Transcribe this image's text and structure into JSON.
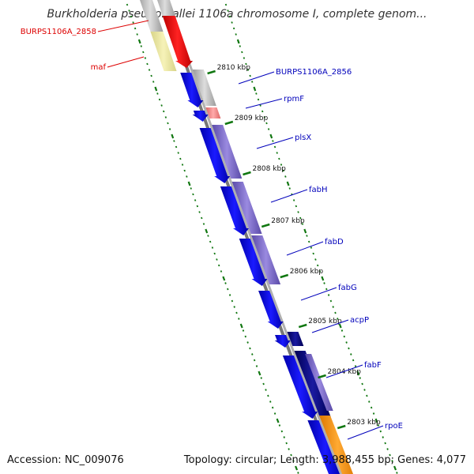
{
  "title": "Burkholderia pseudomallei 1106a chromosome I, complete genom...",
  "footer": {
    "accession": "Accession: NC_009076",
    "stats": "Topology: circular; Length: 3,988,455 bp; Genes: 4,077"
  },
  "kbp_markers": [
    "2810 kbp",
    "2809 kbp",
    "2808 kbp",
    "2807 kbp",
    "2806 kbp",
    "2805 kbp",
    "2804 kbp",
    "2803 kbp"
  ],
  "gene_labels": [
    {
      "name": "BURPS1106A_2858",
      "color": "#dd0000"
    },
    {
      "name": "maf",
      "color": "#dd0000"
    },
    {
      "name": "BURPS1106A_2856",
      "color": "#0000bb"
    },
    {
      "name": "rpmF",
      "color": "#0000bb"
    },
    {
      "name": "plsX",
      "color": "#0000bb"
    },
    {
      "name": "fabH",
      "color": "#0000bb"
    },
    {
      "name": "fabD",
      "color": "#0000bb"
    },
    {
      "name": "fabG",
      "color": "#0000bb"
    },
    {
      "name": "acpP",
      "color": "#0000bb"
    },
    {
      "name": "fabF",
      "color": "#0000bb"
    },
    {
      "name": "rpoE",
      "color": "#0000bb"
    }
  ],
  "colors": {
    "backbone": "#8a8a8a",
    "tick_dots": "#117711",
    "kbp_tick": "#117711",
    "cds_blue": "#0000ee",
    "cds_purple": "#7a6acc",
    "cds_red": "#ee0000",
    "cds_yellow": "#eeea9a",
    "cds_grey": "#bdbdbd",
    "cds_orange": "#ff9900",
    "cds_navy": "#000077",
    "cds_pink": "#ee8888"
  }
}
